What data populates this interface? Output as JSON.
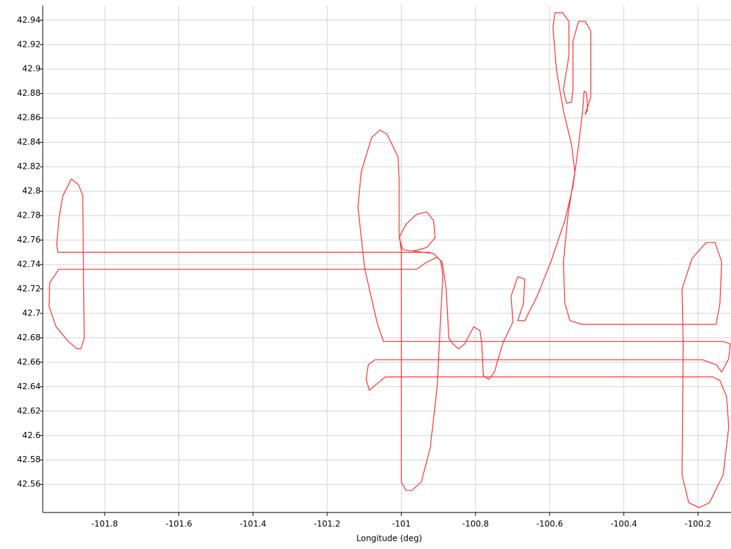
{
  "chart_data": {
    "type": "line",
    "x_label": "Longitude (deg)",
    "color": "#ff2a2a",
    "grid": true,
    "xlim": [
      -101.967,
      -100.111
    ],
    "ylim": [
      42.537,
      42.952
    ],
    "xticks": [
      -101.8,
      -101.6,
      -101.4,
      -101.2,
      -101,
      -100.8,
      -100.6,
      -100.4,
      -100.2
    ],
    "yticks": [
      42.56,
      42.58,
      42.6,
      42.62,
      42.64,
      42.66,
      42.68,
      42.7,
      42.72,
      42.74,
      42.76,
      42.78,
      42.8,
      42.82,
      42.84,
      42.86,
      42.88,
      42.9,
      42.92,
      42.94
    ],
    "x": [
      -100.922,
      -101.926,
      -101.929,
      -101.924,
      -101.913,
      -101.89,
      -101.87,
      -101.859,
      -101.857,
      -101.855,
      -101.864,
      -101.875,
      -101.898,
      -101.931,
      -101.95,
      -101.948,
      -101.924,
      -100.959,
      -100.931,
      -100.903,
      -100.89,
      -100.879,
      -100.872,
      -100.861,
      -100.846,
      -100.829,
      -100.805,
      -100.788,
      -100.783,
      -100.779,
      -100.764,
      -100.749,
      -100.727,
      -100.699,
      -100.704,
      -100.686,
      -100.667,
      -100.671,
      -100.686,
      -100.667,
      -100.634,
      -100.597,
      -100.559,
      -100.537,
      -100.522,
      -100.511,
      -100.507,
      -100.5,
      -100.498,
      -100.504,
      -100.489,
      -100.489,
      -100.504,
      -100.522,
      -100.537,
      -100.537,
      -100.541,
      -100.554,
      -100.563,
      -100.548,
      -100.548,
      -100.565,
      -100.586,
      -100.591,
      -100.582,
      -100.563,
      -100.541,
      -100.532,
      -100.55,
      -100.563,
      -100.559,
      -100.545,
      -100.513,
      -100.151,
      -100.141,
      -100.136,
      -100.154,
      -100.178,
      -100.216,
      -100.243,
      -100.24,
      -100.243,
      -100.225,
      -100.197,
      -100.169,
      -100.132,
      -100.117,
      -100.123,
      -100.141,
      -100.16,
      -101.0,
      -101.043,
      -101.071,
      -101.086,
      -101.095,
      -101.089,
      -101.071,
      -100.188,
      -100.151,
      -100.136,
      -100.117,
      -100.113,
      -100.132,
      -101.048,
      -101.065,
      -101.099,
      -101.117,
      -101.108,
      -101.08,
      -101.058,
      -101.039,
      -101.009,
      -101.006,
      -101.006,
      -101.0,
      -101.0,
      -100.987,
      -100.972,
      -100.946,
      -100.922,
      -100.903,
      -100.894,
      -100.888,
      -100.894,
      -100.913,
      -100.996,
      -101.006,
      -100.987,
      -100.959,
      -100.931,
      -100.913,
      -100.909,
      -100.931,
      -100.968
    ],
    "values": [
      42.75,
      42.75,
      42.756,
      42.776,
      42.796,
      42.81,
      42.805,
      42.796,
      42.731,
      42.68,
      42.671,
      42.671,
      42.677,
      42.689,
      42.706,
      42.725,
      42.736,
      42.736,
      42.742,
      42.746,
      42.742,
      42.72,
      42.68,
      42.675,
      42.671,
      42.675,
      42.689,
      42.686,
      42.675,
      42.649,
      42.646,
      42.652,
      42.675,
      42.693,
      42.714,
      42.73,
      42.728,
      42.708,
      42.694,
      42.694,
      42.714,
      42.742,
      42.776,
      42.804,
      42.838,
      42.866,
      42.882,
      42.88,
      42.866,
      42.863,
      42.877,
      42.931,
      42.939,
      42.939,
      42.923,
      42.883,
      42.873,
      42.872,
      42.883,
      42.911,
      42.939,
      42.946,
      42.946,
      42.934,
      42.9,
      42.866,
      42.838,
      42.816,
      42.782,
      42.742,
      42.708,
      42.694,
      42.691,
      42.691,
      42.708,
      42.742,
      42.758,
      42.758,
      42.745,
      42.72,
      42.675,
      42.568,
      42.545,
      42.541,
      42.545,
      42.568,
      42.607,
      42.632,
      42.645,
      42.648,
      42.648,
      42.648,
      42.641,
      42.637,
      42.646,
      42.658,
      42.662,
      42.662,
      42.658,
      42.652,
      42.663,
      42.675,
      42.677,
      42.677,
      42.692,
      42.737,
      42.787,
      42.816,
      42.844,
      42.85,
      42.847,
      42.828,
      42.81,
      42.765,
      42.751,
      42.562,
      42.555,
      42.555,
      42.562,
      42.59,
      42.641,
      42.697,
      42.731,
      42.743,
      42.749,
      42.752,
      42.762,
      42.773,
      42.781,
      42.783,
      42.776,
      42.762,
      42.754,
      42.751
    ]
  }
}
